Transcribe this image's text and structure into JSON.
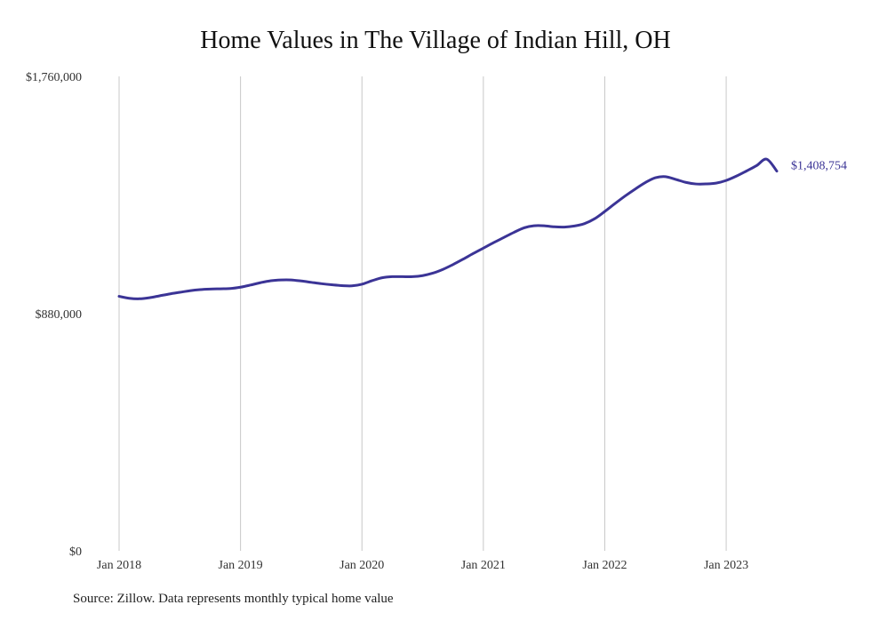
{
  "chart_data": {
    "type": "line",
    "title": "Home Values in The Village of Indian Hill, OH",
    "source": "Source: Zillow. Data represents monthly typical home value",
    "color": "#3b3496",
    "ylim": [
      0,
      1760000
    ],
    "y_ticks": [
      "$0",
      "$880,000",
      "$1,760,000"
    ],
    "x_ticks": [
      "Jan 2018",
      "Jan 2019",
      "Jan 2020",
      "Jan 2021",
      "Jan 2022",
      "Jan 2023"
    ],
    "grid": "vertical",
    "end_label": "$1,408,754",
    "series": [
      {
        "x": [
          "2018-01",
          "2018-02",
          "2018-03",
          "2018-04",
          "2018-05",
          "2018-06",
          "2018-07",
          "2018-08",
          "2018-09",
          "2018-10",
          "2018-11",
          "2018-12",
          "2019-01",
          "2019-02",
          "2019-03",
          "2019-04",
          "2019-05",
          "2019-06",
          "2019-07",
          "2019-08",
          "2019-09",
          "2019-10",
          "2019-11",
          "2019-12",
          "2020-01",
          "2020-02",
          "2020-03",
          "2020-04",
          "2020-05",
          "2020-06",
          "2020-07",
          "2020-08",
          "2020-09",
          "2020-10",
          "2020-11",
          "2020-12",
          "2021-01",
          "2021-02",
          "2021-03",
          "2021-04",
          "2021-05",
          "2021-06",
          "2021-07",
          "2021-08",
          "2021-09",
          "2021-10",
          "2021-11",
          "2021-12",
          "2022-01",
          "2022-02",
          "2022-03",
          "2022-04",
          "2022-05",
          "2022-06",
          "2022-07",
          "2022-08",
          "2022-09",
          "2022-10",
          "2022-11",
          "2022-12",
          "2023-01",
          "2023-02",
          "2023-03",
          "2023-04",
          "2023-05",
          "2023-06"
        ],
        "values": [
          944000,
          937000,
          935000,
          939000,
          946000,
          953000,
          959000,
          965000,
          969000,
          971000,
          972000,
          973000,
          978000,
          986000,
          995000,
          1002000,
          1005000,
          1005000,
          1001000,
          996000,
          991000,
          987000,
          984000,
          983000,
          989000,
          1002000,
          1013000,
          1017000,
          1017000,
          1017000,
          1021000,
          1030000,
          1044000,
          1062000,
          1082000,
          1103000,
          1123000,
          1143000,
          1162000,
          1181000,
          1198000,
          1206000,
          1206000,
          1202000,
          1201000,
          1205000,
          1214000,
          1232000,
          1259000,
          1288000,
          1316000,
          1342000,
          1366000,
          1384000,
          1388000,
          1378000,
          1367000,
          1361000,
          1361000,
          1364000,
          1374000,
          1390000,
          1409000,
          1429000,
          1453000,
          1408754
        ]
      }
    ]
  }
}
